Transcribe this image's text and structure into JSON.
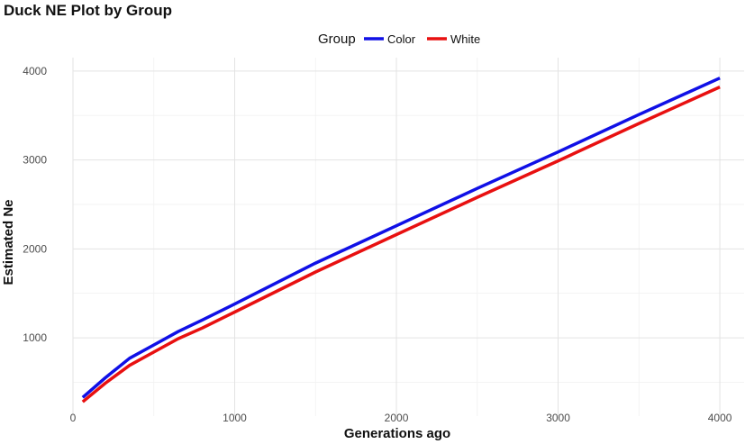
{
  "chart_data": {
    "type": "line",
    "title": "Duck NE Plot by Group",
    "xlabel": "Generations ago",
    "ylabel": "Estimated Ne",
    "xlim": [
      0,
      4150
    ],
    "ylim": [
      120,
      4150
    ],
    "x_ticks": [
      0,
      1000,
      2000,
      3000,
      4000
    ],
    "y_ticks": [
      1000,
      2000,
      3000,
      4000
    ],
    "grid": true,
    "legend": {
      "title": "Group",
      "placement": "top"
    },
    "series": [
      {
        "name": "Color",
        "color": "#1010e6",
        "x": [
          60,
          200,
          350,
          500,
          650,
          800,
          1000,
          1500,
          2000,
          2500,
          3000,
          3500,
          4000
        ],
        "y": [
          330,
          550,
          770,
          920,
          1070,
          1200,
          1380,
          1840,
          2260,
          2680,
          3090,
          3510,
          3920
        ]
      },
      {
        "name": "White",
        "color": "#e81010",
        "x": [
          60,
          200,
          350,
          500,
          650,
          800,
          1000,
          1500,
          2000,
          2500,
          3000,
          3500,
          4000
        ],
        "y": [
          280,
          490,
          690,
          840,
          990,
          1110,
          1290,
          1740,
          2160,
          2580,
          2990,
          3410,
          3820
        ]
      }
    ]
  }
}
